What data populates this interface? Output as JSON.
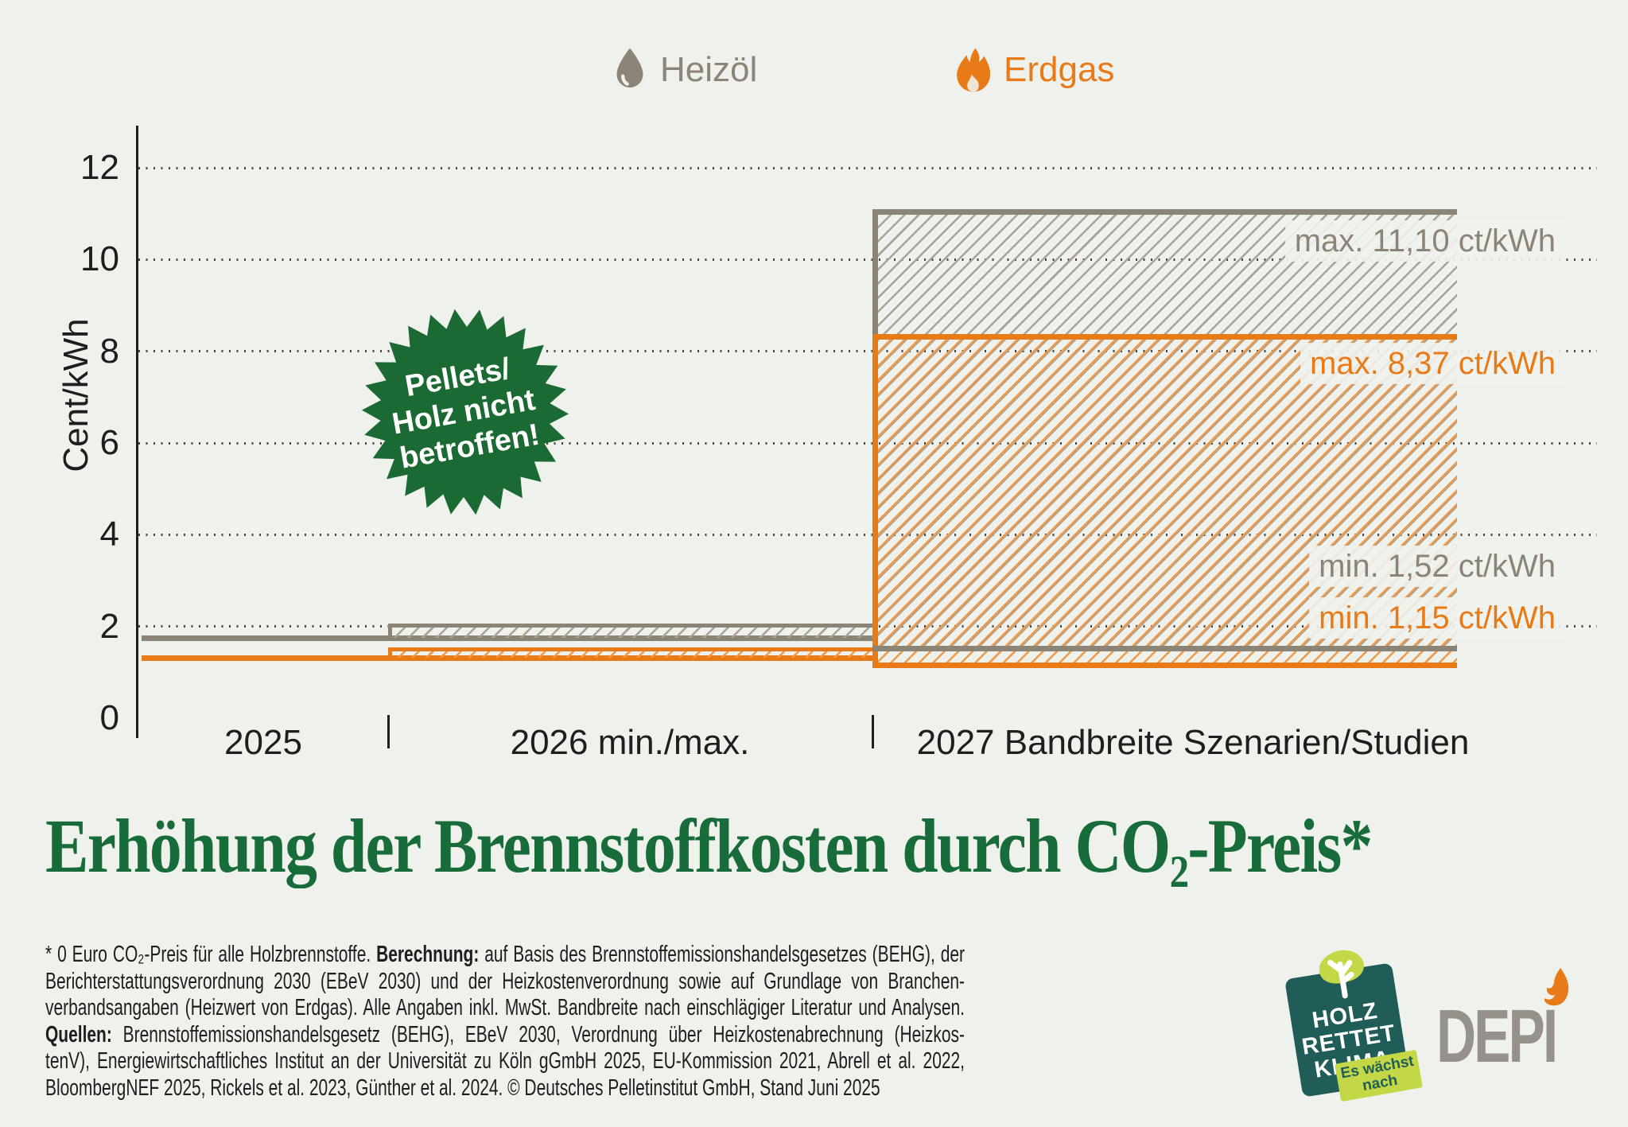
{
  "legend": {
    "heizoel": "Heizöl",
    "erdgas": "Erdgas"
  },
  "chart_data": {
    "type": "step-band",
    "ylabel": "Cent/kWh",
    "unit": "ct/kWh",
    "ylim": [
      0,
      12
    ],
    "yticks": [
      0,
      2,
      4,
      6,
      8,
      10,
      12
    ],
    "grid": "horizontal-dotted",
    "categories": [
      "2025",
      "2026 min./max.",
      "2027 Bandbreite Szenarien/Studien"
    ],
    "series": [
      {
        "name": "Heizöl",
        "color": "#8c8477",
        "hatch": "#aaa294",
        "segments": [
          {
            "category": "2025",
            "min": 1.75,
            "max": 1.75
          },
          {
            "category": "2026 min./max.",
            "min": 1.75,
            "max": 2.07
          },
          {
            "category": "2027 Bandbreite Szenarien/Studien",
            "min": 1.52,
            "max": 11.1
          }
        ]
      },
      {
        "name": "Erdgas",
        "color": "#e87b17",
        "hatch": "#f09a4a",
        "segments": [
          {
            "category": "2025",
            "min": 1.31,
            "max": 1.31
          },
          {
            "category": "2026 min./max.",
            "min": 1.31,
            "max": 1.55
          },
          {
            "category": "2027 Bandbreite Szenarien/Studien",
            "min": 1.15,
            "max": 8.37
          }
        ]
      }
    ],
    "value_labels": [
      {
        "text": "max. 11,10 ct/kWh",
        "series": "Heizöl",
        "value": 11.1
      },
      {
        "text": "max. 8,37 ct/kWh",
        "series": "Erdgas",
        "value": 8.37
      },
      {
        "text": "min. 1,52 ct/kWh",
        "series": "Heizöl",
        "value": 1.52
      },
      {
        "text": "min. 1,15 ct/kWh",
        "series": "Erdgas",
        "value": 1.15
      }
    ]
  },
  "badge": {
    "lines": [
      "Pellets/",
      "Holz nicht",
      "betroffen!"
    ],
    "color": "#1c6a33"
  },
  "title": "Erhöhung der Brennstoffkosten durch CO₂-Preis*",
  "footnote": {
    "lines": [
      [
        {
          "t": "* 0 Euro CO₂-Preis für alle Holzbrennstoffe. ",
          "b": false
        },
        {
          "t": "Berechnung:",
          "b": true
        },
        {
          "t": " auf Basis des Brennstoffemissionshandelsgesetzes (BEHG), der",
          "b": false
        }
      ],
      [
        {
          "t": "Berichterstattungsverordnung 2030 (EBeV 2030) und der Heizkostenverordnung sowie auf Grundlage von Branchen-",
          "b": false
        }
      ],
      [
        {
          "t": "verbandsangaben (Heizwert von Erdgas). Alle Angaben inkl. MwSt. Bandbreite nach einschlägiger Literatur und Analysen.",
          "b": false
        }
      ],
      [
        {
          "t": "Quellen:",
          "b": true
        },
        {
          "t": " Brennstoffemissionshandelsgesetz (BEHG), EBeV 2030, Verordnung über Heizkostenabrechnung (Heizkos-",
          "b": false
        }
      ],
      [
        {
          "t": "tenV),  Energiewirtschaftliches Institut an der Universität zu Köln gGmbH 2025, EU-Kommission 2021, Abrell et al. 2022,",
          "b": false
        }
      ],
      [
        {
          "t": "BloombergNEF 2025, Rickels et al. 2023, Günther et al. 2024. © Deutsches Pelletinstitut GmbH, Stand Juni 2025",
          "b": false
        }
      ]
    ]
  },
  "logos": {
    "holz_rettet_klima": {
      "lines": [
        "HOLZ",
        "RETTET",
        "KLIMA"
      ],
      "tag": "Es wächst nach"
    },
    "depi": "DEPI"
  },
  "colors": {
    "background": "#eff1ec",
    "heizoel": "#8c8477",
    "erdgas": "#e87b17",
    "title_green": "#176c39",
    "badge_green": "#1c6a33",
    "hrk_teal": "#205c58",
    "hrk_lime": "#c4d747",
    "depi_gray": "#97918b",
    "text": "#1e1e1c"
  }
}
